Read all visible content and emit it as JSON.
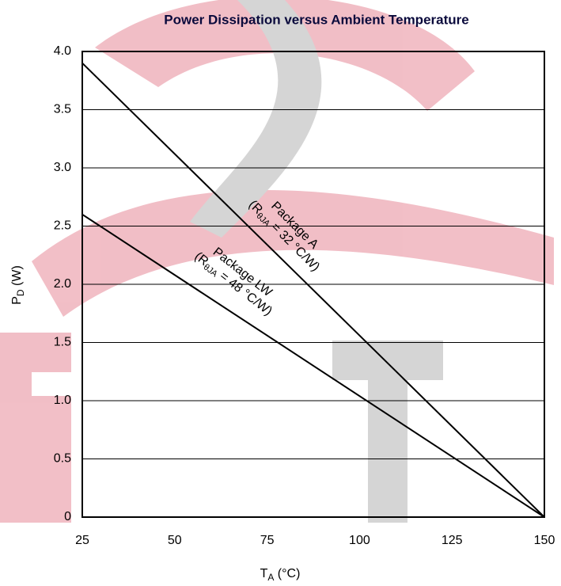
{
  "chart_data": {
    "type": "line",
    "title": "Power Dissipation versus Ambient Temperature",
    "x_label": {
      "main": "T",
      "sub": "A",
      "rest": " (°C)"
    },
    "y_label": {
      "main": "P",
      "sub": "D",
      "rest": " (W)"
    },
    "x": [
      25,
      150
    ],
    "series": [
      {
        "name": "Package A",
        "color": "#000000",
        "values": [
          3.9,
          0
        ],
        "note": {
          "open": "(R",
          "sub": "θJA",
          "close": " = 32 °C/W)"
        }
      },
      {
        "name": "Package LW",
        "color": "#000000",
        "values": [
          2.6,
          0
        ],
        "note": {
          "open": "(R",
          "sub": "θJA",
          "close": " = 48 °C/W)"
        }
      }
    ],
    "xlim": [
      25,
      150
    ],
    "xticks": [
      25,
      50,
      75,
      100,
      125,
      150
    ],
    "ylim": [
      0,
      4
    ],
    "yticks": [
      0,
      0.5,
      {
        "value": 1,
        "label": "1.0"
      },
      1.5,
      {
        "value": 2,
        "label": "2.0"
      },
      2.5,
      {
        "value": 3,
        "label": "3.0"
      },
      3.5,
      {
        "value": 4,
        "label": "4.0"
      }
    ],
    "grid": true
  }
}
